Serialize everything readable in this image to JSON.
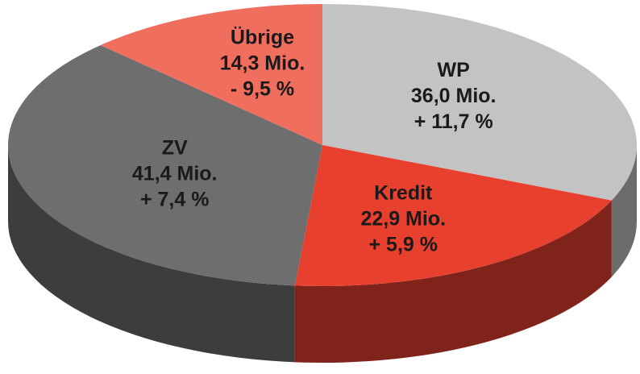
{
  "chart_data": {
    "type": "pie",
    "categories": [
      "WP",
      "Kredit",
      "ZV",
      "Übrige"
    ],
    "values": [
      36.0,
      22.9,
      41.4,
      14.3
    ],
    "value_labels": [
      "36,0 Mio.",
      "22,9 Mio.",
      "41,4 Mio.",
      "14,3 Mio."
    ],
    "change_labels": [
      "+ 11,7 %",
      "+ 5,9 %",
      "+ 7,4 %",
      "- 9,5 %"
    ],
    "colors": [
      "#c3c3c3",
      "#e8402f",
      "#6e6e6e",
      "#f06e5e"
    ]
  }
}
